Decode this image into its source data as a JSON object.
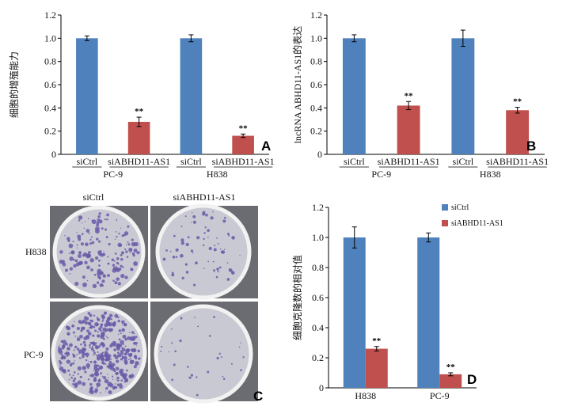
{
  "colors": {
    "siCtrl": "#4F81BD",
    "siABHD11": "#C0504D",
    "dish_rim": "#f2f2f2",
    "dish_bg": "#c9c9d3",
    "plate_bg": "#6b6b72",
    "colony": "#6a5aa8"
  },
  "chart_data": [
    {
      "id": "A",
      "type": "bar",
      "panel_label": "A",
      "ylabel": "细胞的增殖能力",
      "ylim": [
        0,
        1.2
      ],
      "yticks": [
        "0",
        "0.2",
        "0.4",
        "0.6",
        "0.8",
        "1.0",
        "1.2"
      ],
      "groups": [
        "PC-9",
        "H838"
      ],
      "categories": [
        "siCtrl",
        "siABHD11-AS1",
        "siCtrl",
        "siABHD11-AS1"
      ],
      "bars": [
        {
          "group": "PC-9",
          "series": "siCtrl",
          "value": 1.0,
          "err": 0.02,
          "sig": ""
        },
        {
          "group": "PC-9",
          "series": "siABHD11-AS1",
          "value": 0.28,
          "err": 0.04,
          "sig": "**"
        },
        {
          "group": "H838",
          "series": "siCtrl",
          "value": 1.0,
          "err": 0.03,
          "sig": ""
        },
        {
          "group": "H838",
          "series": "siABHD11-AS1",
          "value": 0.16,
          "err": 0.015,
          "sig": "**"
        }
      ]
    },
    {
      "id": "B",
      "type": "bar",
      "panel_label": "B",
      "ylabel": "lncRNA ABHD11-AS1的表达",
      "ylim": [
        0,
        1.2
      ],
      "yticks": [
        "0",
        "0.2",
        "0.4",
        "0.6",
        "0.8",
        "1.0",
        "1.2"
      ],
      "groups": [
        "PC-9",
        "H838"
      ],
      "categories": [
        "siCtrl",
        "siABHD11-AS1",
        "siCtrl",
        "siABHD11-AS1"
      ],
      "bars": [
        {
          "group": "PC-9",
          "series": "siCtrl",
          "value": 1.0,
          "err": 0.03,
          "sig": ""
        },
        {
          "group": "PC-9",
          "series": "siABHD11-AS1",
          "value": 0.42,
          "err": 0.035,
          "sig": "**"
        },
        {
          "group": "H838",
          "series": "siCtrl",
          "value": 1.0,
          "err": 0.07,
          "sig": ""
        },
        {
          "group": "H838",
          "series": "siABHD11-AS1",
          "value": 0.38,
          "err": 0.025,
          "sig": "**"
        }
      ]
    },
    {
      "id": "D",
      "type": "bar",
      "panel_label": "D",
      "ylabel": "细胞克隆数的相对值",
      "ylim": [
        0,
        1.2
      ],
      "yticks": [
        "0",
        "0.2",
        "0.4",
        "0.6",
        "0.8",
        "1.0",
        "1.2"
      ],
      "categories": [
        "H838",
        "PC-9"
      ],
      "legend": [
        {
          "name": "siCtrl",
          "color": "#4F81BD"
        },
        {
          "name": "siABHD11-AS1",
          "color": "#C0504D"
        }
      ],
      "legend_position": "top-right",
      "series": [
        {
          "name": "siCtrl",
          "values": [
            1.0,
            1.0
          ],
          "errors": [
            0.07,
            0.03
          ],
          "sig": [
            "",
            ""
          ]
        },
        {
          "name": "siABHD11-AS1",
          "values": [
            0.26,
            0.09
          ],
          "errors": [
            0.015,
            0.01
          ],
          "sig": [
            "**",
            "**"
          ]
        }
      ]
    }
  ],
  "photo": {
    "panel_label": "C",
    "col_labels": [
      "siCtrl",
      "siABHD11-AS1"
    ],
    "row_labels": [
      "H838",
      "PC-9"
    ]
  }
}
